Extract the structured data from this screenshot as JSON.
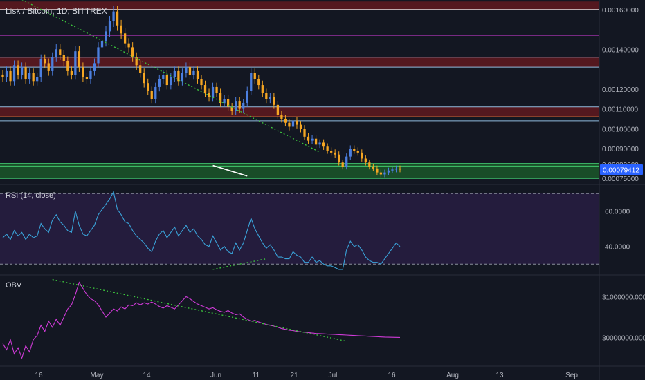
{
  "header": {
    "title": "Lisk / Bitcoin, 1D, BITTREX"
  },
  "colors": {
    "background": "#131722",
    "up_candle": "#4c7fe0",
    "down_candle": "#f5a623",
    "rsi_line": "#3aa3d9",
    "rsi_band": "#241c3d",
    "obv_line": "#d13bd9",
    "trend_dotted": "#3ec93e",
    "support_zone": "#1f7a2e",
    "resistance_zone": "#6b1a1f",
    "price_badge": "#2962ff"
  },
  "chart_data": [
    {
      "type": "candlestick",
      "title": "Lisk / Bitcoin, 1D, BITTREX",
      "ylim": [
        0.00073,
        0.00162
      ],
      "yticks": [
        "0.00160000",
        "0.00140000",
        "0.00120000",
        "0.00110000",
        "0.00100000",
        "0.00090000",
        "0.00082000",
        "0.00075000"
      ],
      "ytick_values": [
        0.0016,
        0.0014,
        0.0012,
        0.0011,
        0.001,
        0.0009,
        0.00082,
        0.00075
      ],
      "current_price_label": "0.00079412",
      "current_price": 0.00079412,
      "xticks": [
        "16",
        "May",
        "14",
        "Jun",
        "11",
        "21",
        "Jul",
        "16",
        "Aug",
        "13",
        "Sep"
      ],
      "horizontal_levels": [
        0.0016,
        0.00147,
        0.00136,
        0.00131,
        0.00111,
        0.00106,
        0.00104,
        0.000825,
        0.000812,
        0.00075
      ],
      "series": [
        {
          "name": "close",
          "values": [
            0.00126,
            0.00129,
            0.00124,
            0.00132,
            0.00127,
            0.00131,
            0.00125,
            0.00128,
            0.00124,
            0.00126,
            0.00135,
            0.00133,
            0.00129,
            0.00136,
            0.0014,
            0.00137,
            0.00134,
            0.00129,
            0.00127,
            0.00139,
            0.00131,
            0.00126,
            0.00125,
            0.00129,
            0.00133,
            0.00141,
            0.00144,
            0.00149,
            0.00154,
            0.00159,
            0.00152,
            0.00148,
            0.00143,
            0.00141,
            0.00136,
            0.00132,
            0.00128,
            0.00123,
            0.00119,
            0.00115,
            0.00121,
            0.00125,
            0.00127,
            0.00122,
            0.00126,
            0.00129,
            0.00124,
            0.00128,
            0.00131,
            0.00127,
            0.00129,
            0.00125,
            0.00122,
            0.00118,
            0.00116,
            0.00121,
            0.00118,
            0.00113,
            0.00115,
            0.00111,
            0.00109,
            0.00114,
            0.0011,
            0.00113,
            0.00119,
            0.00128,
            0.00125,
            0.00122,
            0.00118,
            0.00115,
            0.00116,
            0.00112,
            0.00107,
            0.00105,
            0.00103,
            0.00101,
            0.00104,
            0.00102,
            0.001,
            0.00096,
            0.00094,
            0.00095,
            0.00092,
            0.00093,
            0.00091,
            0.00089,
            0.00088,
            0.00087,
            0.00083,
            0.00081,
            0.00086,
            0.0009,
            0.00089,
            0.00088,
            0.00085,
            0.00083,
            0.00081,
            0.0008,
            0.00078,
            0.00077,
            0.00078,
            0.00079,
            0.000795,
            0.0008,
            0.000795
          ]
        }
      ],
      "annotations": {
        "price_divergence_line": {
          "x": [
            55,
            64
          ],
          "y": [
            0.000815,
            0.000762
          ]
        },
        "resistance_trendline": {
          "x": [
            5,
            83
          ],
          "y": [
            0.00165,
            0.000882
          ]
        }
      }
    },
    {
      "type": "line",
      "title": "RSI (14, close)",
      "ylim": [
        25,
        74
      ],
      "yticks": [
        "60.0000",
        "40.0000"
      ],
      "ytick_values": [
        60,
        40
      ],
      "band": [
        30,
        70
      ],
      "series": [
        {
          "name": "RSI",
          "values": [
            45,
            47,
            44,
            49,
            46,
            48,
            44,
            47,
            45,
            46,
            53,
            50,
            48,
            55,
            58,
            54,
            52,
            49,
            48,
            60,
            52,
            47,
            46,
            49,
            52,
            58,
            61,
            64,
            67,
            71,
            61,
            58,
            54,
            53,
            49,
            46,
            44,
            42,
            39,
            37,
            43,
            47,
            49,
            45,
            48,
            51,
            46,
            49,
            52,
            48,
            50,
            46,
            44,
            41,
            40,
            46,
            42,
            38,
            40,
            37,
            36,
            42,
            38,
            42,
            49,
            56,
            50,
            46,
            42,
            39,
            41,
            38,
            34,
            34,
            33,
            33,
            37,
            35,
            34,
            31,
            31,
            34,
            31,
            32,
            30,
            29,
            29,
            28,
            27,
            27,
            38,
            43,
            40,
            41,
            38,
            34,
            32,
            31,
            31,
            30,
            33,
            36,
            39,
            42,
            40
          ]
        }
      ],
      "annotations": {
        "rsi_divergence_line": {
          "x": [
            55,
            69
          ],
          "y": [
            27,
            33
          ]
        }
      }
    },
    {
      "type": "line",
      "title": "OBV",
      "ylim": [
        29350000,
        31480000
      ],
      "yticks": [
        "31000000.0000",
        "30000000.0000"
      ],
      "ytick_values": [
        31000000,
        30000000
      ],
      "series": [
        {
          "name": "OBV",
          "values": [
            29850000,
            29700000,
            29950000,
            29600000,
            29750000,
            29500000,
            29800000,
            29650000,
            29950000,
            30050000,
            30300000,
            30150000,
            30400000,
            30250000,
            30450000,
            30300000,
            30500000,
            30700000,
            30800000,
            31050000,
            31350000,
            31200000,
            31050000,
            30950000,
            30900000,
            30800000,
            30650000,
            30500000,
            30600000,
            30700000,
            30650000,
            30750000,
            30700000,
            30800000,
            30780000,
            30850000,
            30800000,
            30850000,
            30820000,
            30870000,
            30820000,
            30760000,
            30720000,
            30780000,
            30740000,
            30700000,
            30800000,
            30900000,
            31000000,
            30950000,
            30880000,
            30820000,
            30780000,
            30740000,
            30700000,
            30730000,
            30680000,
            30640000,
            30620000,
            30660000,
            30600000,
            30560000,
            30580000,
            30500000,
            30450000,
            30400000,
            30420000,
            30380000,
            30350000,
            30320000,
            30300000,
            30280000,
            30250000,
            30220000,
            30200000,
            30180000,
            30170000,
            30150000,
            30140000,
            30130000,
            30120000,
            30110000,
            30100000,
            30095000,
            30090000,
            30085000,
            30080000,
            30075000,
            30070000,
            30065000,
            30060000,
            30055000,
            30050000,
            30045000,
            30040000,
            30035000,
            30030000,
            30025000,
            30020000,
            30015000,
            30010000,
            30008000,
            30006000,
            30004000,
            30002000
          ]
        }
      ],
      "annotations": {
        "obv_trendline": {
          "x": [
            13,
            90
          ],
          "y": [
            31420000,
            29910000
          ]
        }
      }
    }
  ]
}
